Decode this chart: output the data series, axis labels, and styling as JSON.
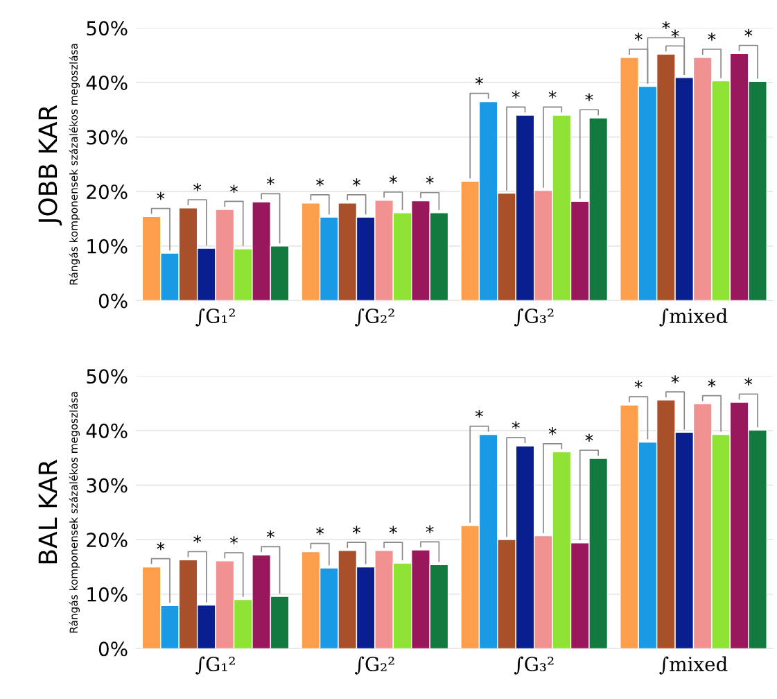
{
  "chart_data": [
    {
      "type": "bar",
      "title": "JOBB KAR",
      "ylabel": "Rángás komponensek százalékos megoszlása",
      "categories": [
        "∫G₁²",
        "∫G₂²",
        "∫G₃²",
        "∫mixed"
      ],
      "series": [
        {
          "color": "#fd9e4c",
          "values": [
            15.4,
            17.9,
            21.9,
            44.6
          ]
        },
        {
          "color": "#1a9ae4",
          "values": [
            8.7,
            15.3,
            36.5,
            39.3
          ]
        },
        {
          "color": "#a8502a",
          "values": [
            17.0,
            17.9,
            19.7,
            45.2
          ]
        },
        {
          "color": "#0a1f8f",
          "values": [
            9.6,
            15.3,
            34.0,
            40.9
          ]
        },
        {
          "color": "#f29192",
          "values": [
            16.7,
            18.4,
            20.2,
            44.6
          ]
        },
        {
          "color": "#8fe334",
          "values": [
            9.5,
            16.1,
            34.0,
            40.3
          ]
        },
        {
          "color": "#99185c",
          "values": [
            18.1,
            18.3,
            18.2,
            45.3
          ]
        },
        {
          "color": "#127a3e",
          "values": [
            10.0,
            16.1,
            33.5,
            40.2
          ]
        }
      ],
      "ylim": [
        0,
        50
      ],
      "yticks": [
        {
          "value": 0,
          "label": "0%"
        },
        {
          "value": 10,
          "label": "10%"
        },
        {
          "value": 20,
          "label": "20%"
        },
        {
          "value": 30,
          "label": "30%"
        },
        {
          "value": 40,
          "label": "40%"
        },
        {
          "value": 50,
          "label": "50%"
        }
      ],
      "grid": "y",
      "annotations": [
        "*",
        "*",
        "*",
        "*",
        "*",
        "*",
        "*",
        "*",
        "*",
        "*",
        "*",
        "*",
        "*",
        "*",
        "*",
        "*",
        "*"
      ]
    },
    {
      "type": "bar",
      "title": "BAL KAR",
      "ylabel": "Rángás komponensek százalékos megoszlása",
      "categories": [
        "∫G₁²",
        "∫G₂²",
        "∫G₃²",
        "∫mixed"
      ],
      "series": [
        {
          "color": "#fd9e4c",
          "values": [
            15.0,
            17.8,
            22.6,
            44.7
          ]
        },
        {
          "color": "#1a9ae4",
          "values": [
            7.9,
            14.8,
            39.3,
            37.9
          ]
        },
        {
          "color": "#a8502a",
          "values": [
            16.3,
            18.0,
            20.0,
            45.6
          ]
        },
        {
          "color": "#0a1f8f",
          "values": [
            8.0,
            15.0,
            37.2,
            39.7
          ]
        },
        {
          "color": "#f29192",
          "values": [
            16.1,
            18.0,
            20.7,
            44.9
          ]
        },
        {
          "color": "#8fe334",
          "values": [
            9.0,
            15.7,
            36.1,
            39.3
          ]
        },
        {
          "color": "#99185c",
          "values": [
            17.2,
            18.1,
            19.4,
            45.2
          ]
        },
        {
          "color": "#127a3e",
          "values": [
            9.6,
            15.4,
            34.9,
            40.1
          ]
        }
      ],
      "ylim": [
        0,
        50
      ],
      "yticks": [
        {
          "value": 0,
          "label": "0%"
        },
        {
          "value": 10,
          "label": "10%"
        },
        {
          "value": 20,
          "label": "20%"
        },
        {
          "value": 30,
          "label": "30%"
        },
        {
          "value": 40,
          "label": "40%"
        },
        {
          "value": 50,
          "label": "50%"
        }
      ],
      "grid": "y",
      "annotations": [
        "*",
        "*",
        "*",
        "*",
        "*",
        "*",
        "*",
        "*",
        "*",
        "*",
        "*",
        "*",
        "*",
        "*",
        "*",
        "*"
      ]
    }
  ]
}
